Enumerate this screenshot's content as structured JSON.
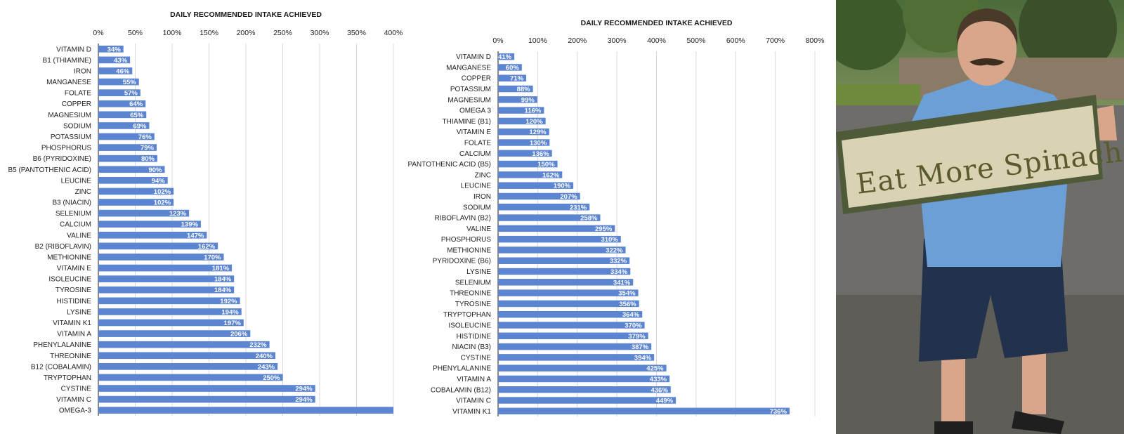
{
  "colors": {
    "bar": "#5b84d1",
    "bar_label": "#ffffff",
    "grid": "#d9d9d9",
    "axis": "#404040",
    "sign_board": "#d9d3b3",
    "sign_frame": "#4e5a38",
    "sign_text": "#5a5a2e",
    "shirt": "#6b9fd6",
    "shorts": "#22324c"
  },
  "photo": {
    "sign_text": "Eat More Spinach"
  },
  "chart_data": [
    {
      "type": "bar",
      "orientation": "horizontal",
      "title": "DAILY RECOMMENDED INTAKE ACHIEVED",
      "xlabel": "",
      "ylabel": "",
      "xlim": [
        0,
        400
      ],
      "xticks": [
        0,
        50,
        100,
        150,
        200,
        250,
        300,
        350,
        400
      ],
      "tick_suffix": "%",
      "grid": true,
      "categories": [
        "VITAMIN D",
        "B1 (THIAMINE)",
        "IRON",
        "MANGANESE",
        "FOLATE",
        "COPPER",
        "MAGNESIUM",
        "SODIUM",
        "POTASSIUM",
        "PHOSPHORUS",
        "B6 (PYRIDOXINE)",
        "B5 (PANTOTHENIC ACID)",
        "LEUCINE",
        "ZINC",
        "B3 (NIACIN)",
        "SELENIUM",
        "CALCIUM",
        "VALINE",
        "B2 (RIBOFLAVIN)",
        "METHIONINE",
        "VITAMIN E",
        "ISOLEUCINE",
        "TYROSINE",
        "HISTIDINE",
        "LYSINE",
        "VITAMIN K1",
        "VITAMIN A",
        "PHENYLALANINE",
        "THREONINE",
        "B12 (COBALAMIN)",
        "TRYPTOPHAN",
        "CYSTINE",
        "VITAMIN C",
        "OMEGA-3"
      ],
      "values": [
        34,
        43,
        46,
        55,
        57,
        64,
        65,
        69,
        76,
        79,
        80,
        90,
        94,
        102,
        102,
        123,
        139,
        147,
        162,
        170,
        181,
        184,
        184,
        192,
        194,
        197,
        206,
        232,
        240,
        243,
        250,
        294,
        294,
        400
      ],
      "data_labels": [
        "34%",
        "43%",
        "46%",
        "55%",
        "57%",
        "64%",
        "65%",
        "69%",
        "76%",
        "79%",
        "80%",
        "90%",
        "94%",
        "102%",
        "102%",
        "123%",
        "139%",
        "147%",
        "162%",
        "170%",
        "181%",
        "184%",
        "184%",
        "192%",
        "194%",
        "197%",
        "206%",
        "232%",
        "240%",
        "243%",
        "250%",
        "294%",
        "294%",
        ""
      ]
    },
    {
      "type": "bar",
      "orientation": "horizontal",
      "title": "DAILY RECOMMENDED INTAKE ACHIEVED",
      "xlabel": "",
      "ylabel": "",
      "xlim": [
        0,
        800
      ],
      "xticks": [
        0,
        100,
        200,
        300,
        400,
        500,
        600,
        700,
        800
      ],
      "tick_suffix": "%",
      "grid": true,
      "categories": [
        "VITAMIN D",
        "MANGANESE",
        "COPPER",
        "POTASSIUM",
        "MAGNESIUM",
        "OMEGA 3",
        "THIAMINE (B1)",
        "VITAMIN E",
        "FOLATE",
        "CALCIUM",
        "PANTOTHENIC ACID (B5)",
        "ZINC",
        "LEUCINE",
        "IRON",
        "SODIUM",
        "RIBOFLAVIN (B2)",
        "VALINE",
        "PHOSPHORUS",
        "METHIONINE",
        "PYRIDOXINE (B6)",
        "LYSINE",
        "SELENIUM",
        "THREONINE",
        "TYROSINE",
        "TRYPTOPHAN",
        "ISOLEUCINE",
        "HISTIDINE",
        "NIACIN (B3)",
        "CYSTINE",
        "PHENYLALANINE",
        "VITAMIN A",
        "COBALAMIN (B12)",
        "VITAMIN C",
        "VITAMIN K1"
      ],
      "values": [
        41,
        60,
        71,
        88,
        99,
        116,
        120,
        129,
        130,
        136,
        150,
        162,
        190,
        207,
        231,
        258,
        295,
        310,
        322,
        332,
        334,
        341,
        354,
        356,
        364,
        370,
        379,
        387,
        394,
        425,
        433,
        436,
        449,
        736
      ],
      "data_labels": [
        "41%",
        "60%",
        "71%",
        "88%",
        "99%",
        "116%",
        "120%",
        "129%",
        "130%",
        "136%",
        "150%",
        "162%",
        "190%",
        "207%",
        "231%",
        "258%",
        "295%",
        "310%",
        "322%",
        "332%",
        "334%",
        "341%",
        "354%",
        "356%",
        "364%",
        "370%",
        "379%",
        "387%",
        "394%",
        "425%",
        "433%",
        "436%",
        "449%",
        "736%"
      ]
    }
  ]
}
